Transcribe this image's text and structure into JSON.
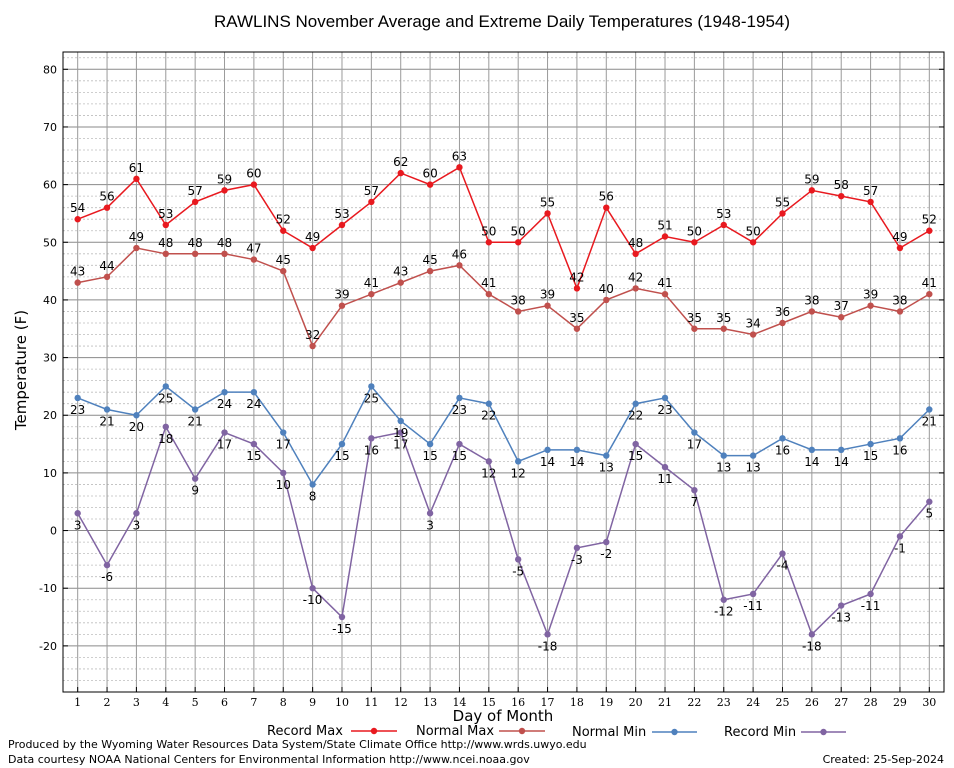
{
  "chart_data": {
    "type": "line",
    "title": "RAWLINS November Average and Extreme Daily Temperatures (1948-1954)",
    "xlabel": "Day of Month",
    "ylabel": "Temperature (F)",
    "ylim": [
      -28,
      83
    ],
    "y_ticks": [
      -20,
      -10,
      0,
      10,
      20,
      30,
      40,
      50,
      60,
      70,
      80
    ],
    "grid": true,
    "legend_position": "bottom",
    "x": [
      1,
      2,
      3,
      4,
      5,
      6,
      7,
      8,
      9,
      10,
      11,
      12,
      13,
      14,
      15,
      16,
      17,
      18,
      19,
      20,
      21,
      22,
      23,
      24,
      25,
      26,
      27,
      28,
      29,
      30
    ],
    "series": [
      {
        "name": "Record Max",
        "color": "#e8191f",
        "label_position": "above",
        "values": [
          54,
          56,
          61,
          53,
          57,
          59,
          60,
          52,
          49,
          53,
          57,
          62,
          60,
          63,
          50,
          50,
          55,
          42,
          56,
          48,
          51,
          50,
          53,
          50,
          55,
          59,
          58,
          57,
          49,
          52
        ]
      },
      {
        "name": "Normal Max",
        "color": "#c0504d",
        "label_position": "above",
        "values": [
          43,
          44,
          49,
          48,
          48,
          48,
          47,
          45,
          32,
          39,
          41,
          43,
          45,
          46,
          41,
          38,
          39,
          35,
          40,
          42,
          41,
          35,
          35,
          34,
          36,
          38,
          37,
          39,
          38,
          41
        ]
      },
      {
        "name": "Normal Min",
        "color": "#4f81bd",
        "label_position": "below",
        "values": [
          23,
          21,
          20,
          25,
          21,
          24,
          24,
          17,
          8,
          15,
          25,
          19,
          15,
          23,
          22,
          12,
          14,
          14,
          13,
          22,
          23,
          17,
          13,
          13,
          16,
          14,
          14,
          15,
          16,
          21
        ]
      },
      {
        "name": "Record Min",
        "color": "#8064a2",
        "label_position": "below",
        "values": [
          3,
          -6,
          3,
          18,
          9,
          17,
          15,
          10,
          -10,
          -15,
          16,
          17,
          3,
          15,
          12,
          -5,
          -18,
          -3,
          -2,
          15,
          11,
          7,
          -12,
          -11,
          -4,
          -18,
          -13,
          -11,
          -1,
          5
        ]
      }
    ]
  },
  "footer": {
    "credit_line1": "Produced by the Wyoming Water Resources Data System/State Climate Office http://www.wrds.uwyo.edu",
    "credit_line2": "Data courtesy NOAA National Centers for Environmental Information http://www.ncei.noaa.gov",
    "created": "Created:  25-Sep-2024"
  }
}
